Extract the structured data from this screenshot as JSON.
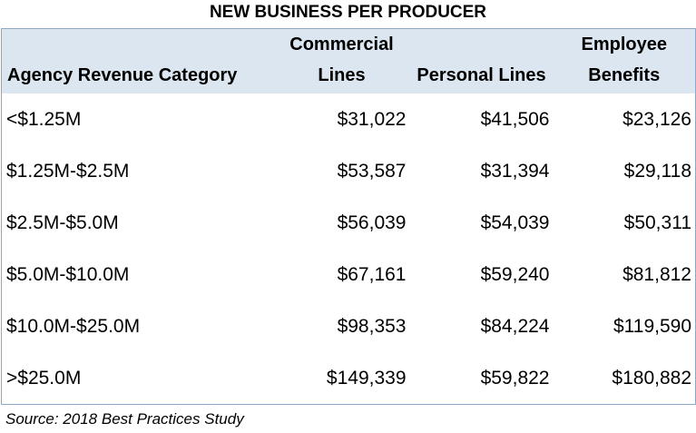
{
  "header": {
    "title": "NEW BUSINESS PER PRODUCER"
  },
  "table": {
    "columns": [
      "Agency Revenue Category",
      "Commercial Lines",
      "Personal Lines",
      "Employee Benefits"
    ],
    "rows": [
      [
        "<$1.25M",
        "$31,022",
        "$41,506",
        "$23,126"
      ],
      [
        "$1.25M-$2.5M",
        "$53,587",
        "$31,394",
        "$29,118"
      ],
      [
        "$2.5M-$5.0M",
        "$56,039",
        "$54,039",
        "$50,311"
      ],
      [
        "$5.0M-$10.0M",
        "$67,161",
        "$59,240",
        "$81,812"
      ],
      [
        "$10.0M-$25.0M",
        "$98,353",
        "$84,224",
        "$119,590"
      ],
      [
        ">$25.0M",
        "$149,339",
        "$59,822",
        "$180,882"
      ]
    ]
  },
  "footer": {
    "source": "Source: 2018 Best Practices Study"
  }
}
